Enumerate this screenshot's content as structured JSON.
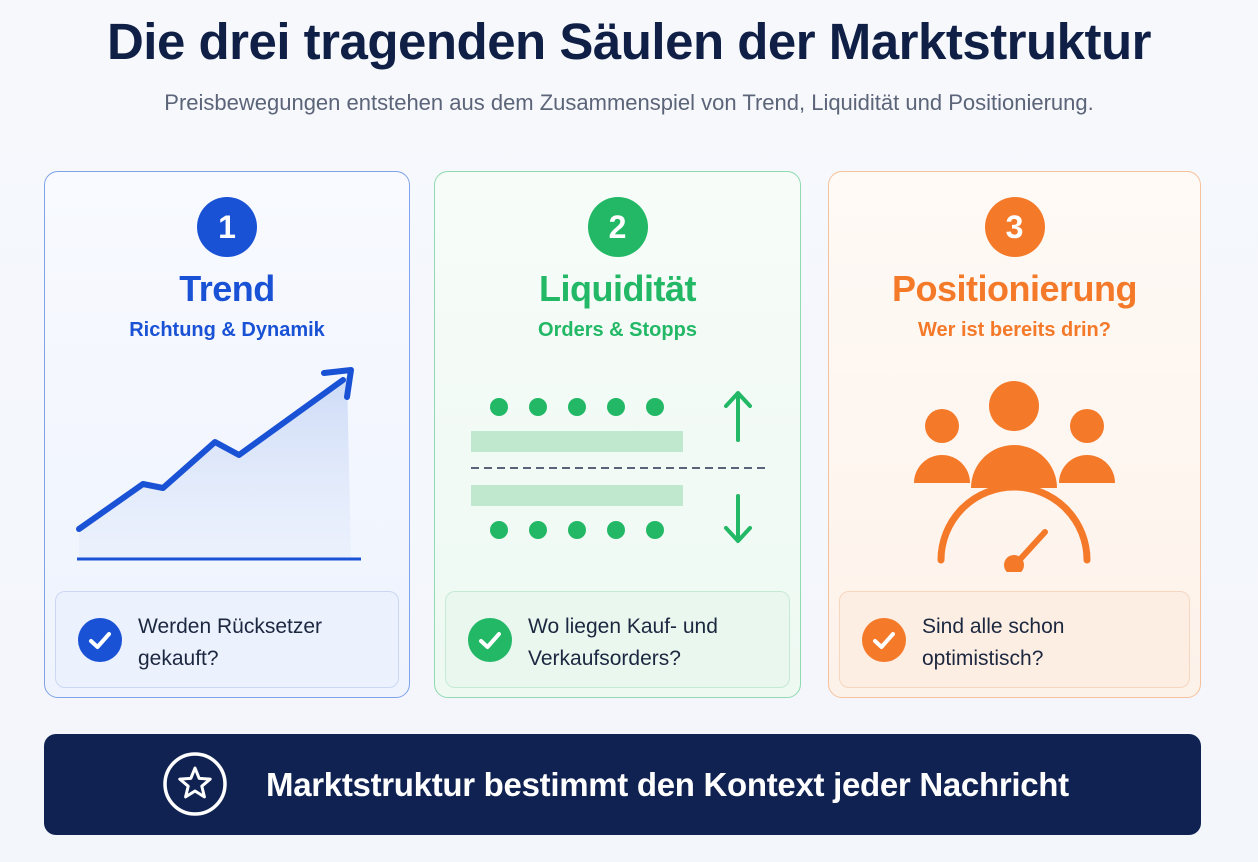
{
  "header": {
    "title": "Die drei tragenden Säulen der Marktstruktur",
    "subtitle": "Preisbewegungen entstehen aus dem Zusammenspiel von Trend, Liquidität und Positionierung."
  },
  "pillars": [
    {
      "number": "1",
      "title": "Trend",
      "subtitle": "Richtung & Dynamik",
      "question": "Werden Rücksetzer gekauft?",
      "illustration": "trend-chart-icon",
      "color": "#1a52d6"
    },
    {
      "number": "2",
      "title": "Liquidität",
      "subtitle": "Orders & Stopps",
      "question": "Wo liegen Kauf- und Verkaufsorders?",
      "illustration": "order-levels-icon",
      "color": "#22b866"
    },
    {
      "number": "3",
      "title": "Positionierung",
      "subtitle": "Wer ist bereits drin?",
      "question": "Sind alle schon optimistisch?",
      "illustration": "people-gauge-icon",
      "color": "#f47a2a"
    }
  ],
  "banner": {
    "text": "Marktstruktur bestimmt den Kontext jeder Nachricht",
    "icon": "star-icon",
    "background": "#0f2252"
  }
}
